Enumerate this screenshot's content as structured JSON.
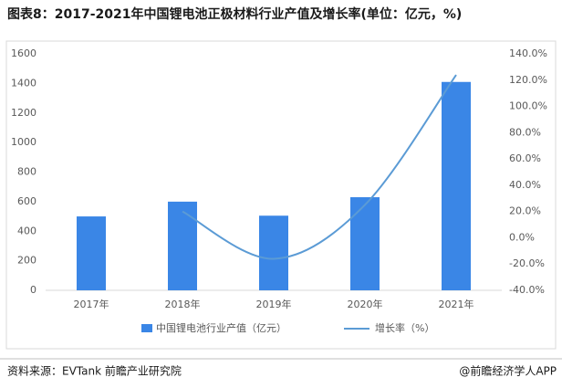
{
  "chart_data": {
    "type": "bar-line",
    "title": "图表8：2017-2021年中国锂电池正极材料行业产值及增长率(单位：亿元，%)",
    "categories": [
      "2017年",
      "2018年",
      "2019年",
      "2020年",
      "2021年"
    ],
    "series": [
      {
        "name": "中国锂电池行业产值（亿元）",
        "color": "#3a86e6",
        "type": "bar",
        "values": [
          500,
          600,
          505,
          630,
          1410
        ]
      },
      {
        "name": "增长率（%）",
        "color": "#5b9bd5",
        "type": "line",
        "axis": "y2",
        "values": [
          null,
          20,
          -16,
          25,
          124
        ]
      }
    ],
    "ylim": [
      0,
      1600
    ],
    "yticks": [
      0,
      200,
      400,
      600,
      800,
      1000,
      1200,
      1400,
      1600
    ],
    "y2lim": [
      -40,
      140
    ],
    "y2ticks": [
      {
        "value": -40,
        "label": "-40.0%"
      },
      {
        "value": -20,
        "label": "-20.0%"
      },
      {
        "value": 0,
        "label": "0.0%"
      },
      {
        "value": 20,
        "label": "20.0%"
      },
      {
        "value": 40,
        "label": "40.0%"
      },
      {
        "value": 60,
        "label": "60.0%"
      },
      {
        "value": 80,
        "label": "80.0%"
      },
      {
        "value": 100,
        "label": "100.0%"
      },
      {
        "value": 120,
        "label": "120.0%"
      },
      {
        "value": 140,
        "label": "140.0%"
      }
    ],
    "source": "资料来源：EVTank 前瞻产业研究院",
    "credit": "@前瞻经济学人APP"
  }
}
